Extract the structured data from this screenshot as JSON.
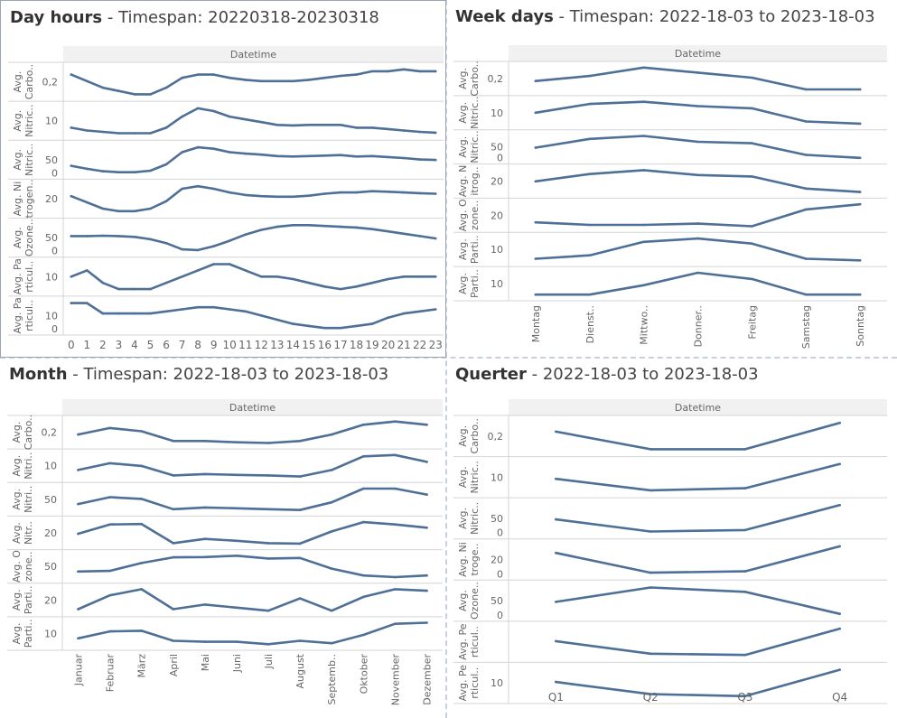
{
  "theme": {
    "line_color": "#4e6f96",
    "grid_color": "#d4d4d4",
    "header_bg": "#f1f1f1",
    "selected_border": "#9aa5b1"
  },
  "panels": {
    "day_hours": {
      "title_bold": "Day hours",
      "title_rest": " - Timespan: 20220318-20230318"
    },
    "week_days": {
      "title_bold": "Week days",
      "title_rest": " - Timespan: 2022-18-03 to 2023-18-03"
    },
    "month": {
      "title_bold": "Month",
      "title_rest": " - Timespan: 2022-18-03 to 2023-18-03"
    },
    "quarter": {
      "title_bold": "Querter",
      "title_rest": " - 2022-18-03 to 2023-18-03"
    }
  },
  "chart_data": [
    {
      "id": "day_hours",
      "type": "line",
      "column_header": "Datetime",
      "categories": [
        "0",
        "1",
        "2",
        "3",
        "4",
        "5",
        "6",
        "7",
        "8",
        "9",
        "10",
        "11",
        "12",
        "13",
        "14",
        "15",
        "16",
        "17",
        "18",
        "19",
        "20",
        "21",
        "22",
        "23"
      ],
      "rows": [
        {
          "label": [
            "Avg.",
            "Carbo.."
          ],
          "tick_label": "0,2",
          "values": [
            0.24,
            0.23,
            0.22,
            0.215,
            0.21,
            0.21,
            0.22,
            0.235,
            0.24,
            0.24,
            0.235,
            0.232,
            0.23,
            0.23,
            0.23,
            0.232,
            0.235,
            0.238,
            0.24,
            0.245,
            0.245,
            0.248,
            0.245,
            0.245
          ]
        },
        {
          "label": [
            "Avg.",
            "Nitric.."
          ],
          "tick_label": "10",
          "values": [
            10,
            9,
            8.5,
            8,
            8,
            8,
            10,
            14,
            17,
            16,
            14,
            13,
            12,
            11,
            10.8,
            11,
            11,
            11,
            10,
            10,
            9.5,
            9,
            8.5,
            8.2
          ]
        },
        {
          "label": [
            "Avg.",
            "Nitric.."
          ],
          "tick_label": "50",
          "zero_label": "0",
          "values": [
            32,
            26,
            21,
            19,
            19,
            22,
            35,
            60,
            70,
            67,
            60,
            57,
            55,
            52,
            51,
            52,
            53,
            54,
            51,
            52,
            50,
            48,
            45,
            44
          ]
        },
        {
          "label": [
            "Avg. Ni",
            "trogen.."
          ],
          "tick_label": "20",
          "values": [
            23,
            20.5,
            18,
            17,
            17,
            18,
            21,
            26,
            27,
            26,
            24.5,
            23.5,
            23,
            22.8,
            22.8,
            23.2,
            24,
            24.5,
            24.5,
            25,
            24.8,
            24.5,
            24.2,
            24
          ]
        },
        {
          "label": [
            "Avg.",
            "Ozone.."
          ],
          "tick_label": "50",
          "zero_label": "0",
          "values": [
            38,
            38,
            38.5,
            38,
            37,
            34,
            29,
            21,
            20,
            25,
            32,
            40,
            46,
            50,
            52,
            52,
            51,
            50,
            49,
            47,
            44,
            41,
            38,
            35
          ]
        },
        {
          "label": [
            "Avg. Pa",
            "rticul.."
          ],
          "tick_label": "10",
          "values": [
            16,
            16.5,
            15.5,
            15,
            15,
            15,
            15.5,
            16,
            16.5,
            17,
            17,
            16.5,
            16,
            16,
            15.8,
            15.5,
            15.2,
            15,
            15.2,
            15.5,
            15.8,
            16,
            16,
            16
          ]
        },
        {
          "label": [
            "Avg. Pa",
            "rticul.."
          ],
          "tick_label": "10",
          "zero_label": "0",
          "values": [
            13,
            13,
            12.5,
            12.5,
            12.5,
            12.5,
            12.6,
            12.7,
            12.8,
            12.8,
            12.7,
            12.6,
            12.4,
            12.2,
            12,
            11.9,
            11.8,
            11.8,
            11.9,
            12,
            12.3,
            12.5,
            12.6,
            12.7
          ]
        }
      ]
    },
    {
      "id": "week_days",
      "type": "line",
      "column_header": "Datetime",
      "categories": [
        "Montag",
        "Dienst..",
        "Mittwo..",
        "Donner..",
        "Freitag",
        "Samstag",
        "Sonntag"
      ],
      "rows": [
        {
          "label": [
            "Avg.",
            "Carbo.."
          ],
          "tick_label": "0,2",
          "values": [
            0.25,
            0.253,
            0.258,
            0.255,
            0.252,
            0.245,
            0.245
          ]
        },
        {
          "label": [
            "Avg.",
            "Nitric.."
          ],
          "tick_label": "10",
          "values": [
            11,
            13,
            13.5,
            12.5,
            12,
            9,
            8.5
          ]
        },
        {
          "label": [
            "Avg.",
            "Nitric.."
          ],
          "tick_label": "50",
          "zero_label": "0",
          "values": [
            42,
            48,
            50,
            46,
            45,
            37,
            35
          ]
        },
        {
          "label": [
            "Avg. N",
            "itrog.."
          ],
          "tick_label": "20",
          "values": [
            22.5,
            24,
            24.8,
            23.8,
            23.5,
            21,
            20.3
          ]
        },
        {
          "label": [
            "Avg. O",
            "zone.."
          ],
          "tick_label": "20",
          "values": [
            36,
            35.8,
            35.8,
            35.9,
            35.7,
            37,
            37.4
          ]
        },
        {
          "label": [
            "Avg.",
            "Parti.."
          ],
          "tick_label": "10",
          "values": [
            14,
            14.2,
            15,
            15.2,
            14.9,
            14,
            13.9
          ]
        },
        {
          "label": [
            "Avg.",
            "Parti.."
          ],
          "tick_label": "10",
          "values": [
            12,
            12,
            12.3,
            12.7,
            12.5,
            12,
            12
          ]
        }
      ]
    },
    {
      "id": "month",
      "type": "line",
      "column_header": "Datetime",
      "categories": [
        "Januar",
        "Februar",
        "März",
        "April",
        "Mai",
        "Juni",
        "Juli",
        "August",
        "Septemb..",
        "Oktober",
        "November",
        "Dezember"
      ],
      "rows": [
        {
          "label": [
            "Avg.",
            "Carbo.."
          ],
          "tick_label": "0,2",
          "values": [
            0.245,
            0.255,
            0.25,
            0.235,
            0.235,
            0.233,
            0.232,
            0.235,
            0.245,
            0.26,
            0.265,
            0.26
          ]
        },
        {
          "label": [
            "Avg.",
            "Nitri.."
          ],
          "tick_label": "10",
          "values": [
            11,
            13.5,
            12.5,
            9,
            9.5,
            9.2,
            9,
            8.6,
            11,
            16,
            16.5,
            14
          ]
        },
        {
          "label": [
            "Avg.",
            "Nitri.."
          ],
          "tick_label": "50",
          "values": [
            44,
            52,
            50,
            38,
            40,
            39,
            38,
            37,
            46,
            62,
            62,
            55
          ]
        },
        {
          "label": [
            "Avg. ",
            "Nitr.."
          ],
          "tick_label": "20",
          "values": [
            22.5,
            24.5,
            24.6,
            20.5,
            21.4,
            21,
            20.5,
            20.4,
            23,
            25,
            24.5,
            23.8
          ]
        },
        {
          "label": [
            "Avg. O",
            "zone.."
          ],
          "tick_label": "50",
          "values": [
            30,
            31,
            45,
            55,
            55.5,
            58,
            53,
            54,
            35,
            23,
            20,
            23
          ]
        },
        {
          "label": [
            "Avg.",
            "Parti.."
          ],
          "tick_label": "20",
          "values": [
            18.5,
            23,
            25,
            18.5,
            20,
            19,
            18,
            22,
            18,
            22.5,
            25,
            24.5
          ]
        },
        {
          "label": [
            "Avg.",
            "Parti.."
          ],
          "tick_label": "10",
          "values": [
            11,
            13,
            13.2,
            10.3,
            10,
            10,
            9.3,
            10.3,
            9.6,
            12,
            15.2,
            15.5
          ]
        }
      ]
    },
    {
      "id": "quarter",
      "type": "line",
      "column_header": "Datetime",
      "categories": [
        "Q1",
        "Q2",
        "Q3",
        "Q4"
      ],
      "rows": [
        {
          "label": [
            "Avg.",
            "Carbo.."
          ],
          "tick_label": "0,2",
          "values": [
            0.25,
            0.23,
            0.23,
            0.26
          ]
        },
        {
          "label": [
            "Avg.",
            "Nitric.."
          ],
          "tick_label": "10",
          "values": [
            12,
            9.3,
            9.8,
            15.5
          ]
        },
        {
          "label": [
            "Avg.",
            "Nitric.."
          ],
          "tick_label": "50",
          "zero_label": "0",
          "values": [
            46,
            29,
            31,
            66
          ]
        },
        {
          "label": [
            "Avg. Ni",
            "troge.."
          ],
          "tick_label": "20",
          "zero_label": "0",
          "values": [
            24,
            21,
            21.2,
            25
          ]
        },
        {
          "label": [
            "Avg.",
            "Ozone.."
          ],
          "tick_label": "50",
          "zero_label": "0",
          "values": [
            35,
            71,
            60,
            5
          ]
        },
        {
          "label": [
            "Avg. Pe",
            "rticul.."
          ],
          "tick_label": "",
          "values": [
            18.5,
            17.5,
            17.4,
            19.5
          ]
        },
        {
          "label": [
            "Avg. Pe",
            "rticul.."
          ],
          "tick_label": "10",
          "values": [
            13.5,
            10.5,
            10,
            16.5
          ]
        }
      ]
    }
  ]
}
